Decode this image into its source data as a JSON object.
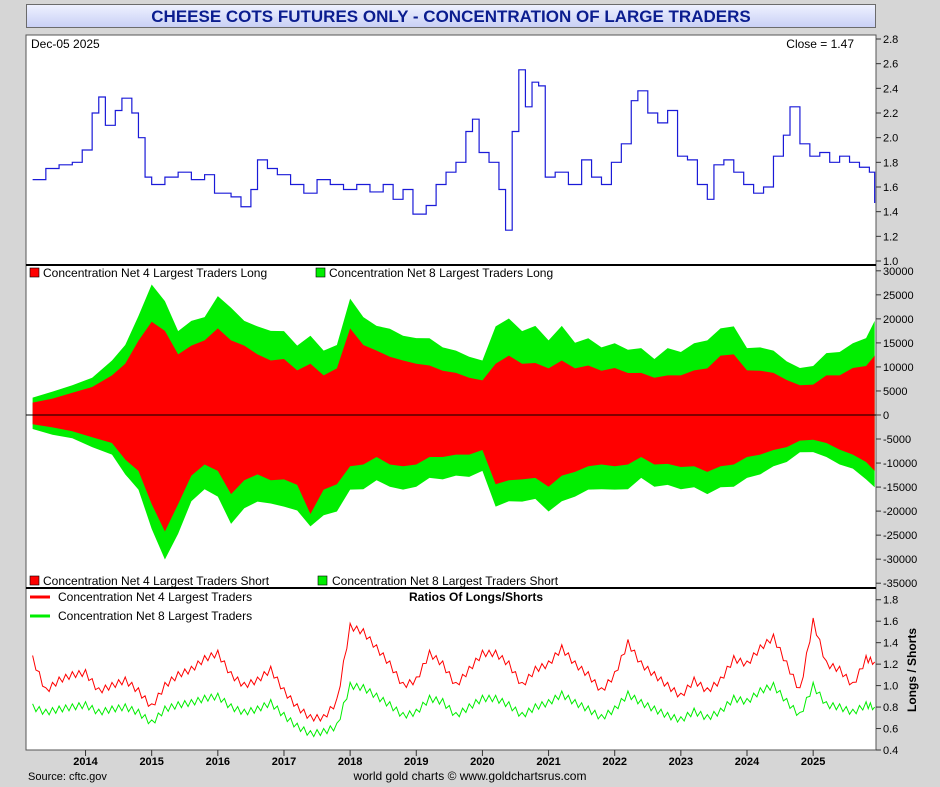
{
  "title": "CHEESE COTS FUTURES ONLY - CONCENTRATION OF LARGE TRADERS",
  "footer": {
    "source": "Source: cftc.gov",
    "credit": "world gold charts © www.goldchartsrus.com"
  },
  "colors": {
    "price_line": "#1a1ad8",
    "net4": "#ff0000",
    "net8": "#00ee00",
    "title_text": "#0b1d8f"
  },
  "x_axis": {
    "years": [
      "2014",
      "2015",
      "2016",
      "2017",
      "2018",
      "2019",
      "2020",
      "2021",
      "2022",
      "2023",
      "2024",
      "2025"
    ]
  },
  "chart_data": [
    {
      "type": "line",
      "name": "price",
      "date_label": "Dec-05  2025",
      "close_label": "Close = 1.47",
      "yticks": [
        "2.8",
        "2.6",
        "2.4",
        "2.2",
        "2.0",
        "1.8",
        "1.6",
        "1.4",
        "1.2",
        "1.0"
      ],
      "ylim": [
        1.0,
        2.8
      ],
      "points": [
        [
          2013.2,
          1.66
        ],
        [
          2013.4,
          1.75
        ],
        [
          2013.6,
          1.78
        ],
        [
          2013.8,
          1.8
        ],
        [
          2013.95,
          1.9
        ],
        [
          2014.1,
          2.2
        ],
        [
          2014.2,
          2.33
        ],
        [
          2014.3,
          2.1
        ],
        [
          2014.45,
          2.22
        ],
        [
          2014.55,
          2.32
        ],
        [
          2014.7,
          2.2
        ],
        [
          2014.8,
          2.0
        ],
        [
          2014.9,
          1.68
        ],
        [
          2015.0,
          1.62
        ],
        [
          2015.2,
          1.68
        ],
        [
          2015.4,
          1.72
        ],
        [
          2015.6,
          1.66
        ],
        [
          2015.8,
          1.7
        ],
        [
          2015.95,
          1.55
        ],
        [
          2016.2,
          1.52
        ],
        [
          2016.35,
          1.44
        ],
        [
          2016.5,
          1.58
        ],
        [
          2016.6,
          1.82
        ],
        [
          2016.75,
          1.75
        ],
        [
          2016.9,
          1.7
        ],
        [
          2017.1,
          1.62
        ],
        [
          2017.3,
          1.55
        ],
        [
          2017.5,
          1.66
        ],
        [
          2017.7,
          1.62
        ],
        [
          2017.9,
          1.58
        ],
        [
          2018.1,
          1.62
        ],
        [
          2018.3,
          1.56
        ],
        [
          2018.5,
          1.62
        ],
        [
          2018.65,
          1.5
        ],
        [
          2018.8,
          1.58
        ],
        [
          2018.95,
          1.38
        ],
        [
          2019.15,
          1.45
        ],
        [
          2019.3,
          1.62
        ],
        [
          2019.45,
          1.72
        ],
        [
          2019.6,
          1.8
        ],
        [
          2019.75,
          2.05
        ],
        [
          2019.85,
          2.15
        ],
        [
          2019.95,
          1.88
        ],
        [
          2020.1,
          1.8
        ],
        [
          2020.25,
          1.58
        ],
        [
          2020.35,
          1.25
        ],
        [
          2020.45,
          2.05
        ],
        [
          2020.55,
          2.55
        ],
        [
          2020.65,
          2.25
        ],
        [
          2020.75,
          2.45
        ],
        [
          2020.85,
          2.42
        ],
        [
          2020.95,
          1.68
        ],
        [
          2021.1,
          1.72
        ],
        [
          2021.3,
          1.62
        ],
        [
          2021.5,
          1.82
        ],
        [
          2021.65,
          1.68
        ],
        [
          2021.8,
          1.62
        ],
        [
          2021.95,
          1.8
        ],
        [
          2022.1,
          1.95
        ],
        [
          2022.25,
          2.3
        ],
        [
          2022.35,
          2.38
        ],
        [
          2022.5,
          2.2
        ],
        [
          2022.65,
          2.12
        ],
        [
          2022.8,
          2.22
        ],
        [
          2022.95,
          1.85
        ],
        [
          2023.1,
          1.82
        ],
        [
          2023.25,
          1.62
        ],
        [
          2023.4,
          1.5
        ],
        [
          2023.5,
          1.78
        ],
        [
          2023.65,
          1.82
        ],
        [
          2023.8,
          1.72
        ],
        [
          2023.95,
          1.62
        ],
        [
          2024.1,
          1.55
        ],
        [
          2024.25,
          1.6
        ],
        [
          2024.4,
          1.85
        ],
        [
          2024.55,
          2.02
        ],
        [
          2024.65,
          2.25
        ],
        [
          2024.8,
          1.95
        ],
        [
          2024.95,
          1.85
        ],
        [
          2025.1,
          1.88
        ],
        [
          2025.25,
          1.8
        ],
        [
          2025.4,
          1.85
        ],
        [
          2025.55,
          1.8
        ],
        [
          2025.7,
          1.76
        ],
        [
          2025.85,
          1.72
        ],
        [
          2025.93,
          1.47
        ]
      ]
    },
    {
      "type": "area",
      "name": "concentration",
      "legend_long": [
        "Concentration Net 4 Largest Traders Long",
        "Concentration Net 8 Largest Traders Long"
      ],
      "legend_short": [
        "Concentration Net 4 Largest Traders Short",
        "Concentration Net 8 Largest Traders Short"
      ],
      "yticks": [
        "30000",
        "25000",
        "20000",
        "15000",
        "10000",
        "5000",
        "0",
        "-5000",
        "-10000",
        "-15000",
        "-20000",
        "-25000",
        "-30000",
        "-35000"
      ],
      "ylim": [
        -36000,
        31000
      ],
      "x": [
        2013.2,
        2013.5,
        2013.8,
        2014.1,
        2014.4,
        2014.6,
        2014.8,
        2015.0,
        2015.2,
        2015.4,
        2015.6,
        2015.8,
        2016.0,
        2016.2,
        2016.4,
        2016.6,
        2016.8,
        2017.0,
        2017.2,
        2017.4,
        2017.6,
        2017.8,
        2018.0,
        2018.2,
        2018.4,
        2018.6,
        2018.8,
        2019.0,
        2019.2,
        2019.4,
        2019.6,
        2019.8,
        2020.0,
        2020.2,
        2020.4,
        2020.6,
        2020.8,
        2021.0,
        2021.2,
        2021.4,
        2021.6,
        2021.8,
        2022.0,
        2022.2,
        2022.4,
        2022.6,
        2022.8,
        2023.0,
        2023.2,
        2023.4,
        2023.6,
        2023.8,
        2024.0,
        2024.2,
        2024.4,
        2024.6,
        2024.8,
        2025.0,
        2025.2,
        2025.4,
        2025.6,
        2025.8,
        2025.93
      ],
      "net4_long": [
        2500,
        3500,
        4500,
        6000,
        8000,
        11000,
        15000,
        20000,
        17000,
        13000,
        14000,
        16000,
        17500,
        16000,
        14000,
        13000,
        11000,
        12000,
        9000,
        11000,
        8000,
        10000,
        17500,
        15000,
        13000,
        12500,
        11000,
        11000,
        10000,
        9500,
        8500,
        8000,
        7000,
        11000,
        12000,
        11000,
        10500,
        10000,
        11000,
        10000,
        10000,
        9500,
        9500,
        9000,
        8500,
        8000,
        8000,
        8500,
        9000,
        10000,
        12000,
        13000,
        9000,
        9500,
        8500,
        7500,
        6000,
        6500,
        8000,
        8500,
        9500,
        10500,
        12000
      ],
      "net8_long": [
        3500,
        5000,
        6000,
        8000,
        11000,
        15000,
        20000,
        28000,
        23000,
        18000,
        19000,
        21000,
        24000,
        23000,
        19000,
        19000,
        17000,
        18000,
        14000,
        17000,
        13000,
        15000,
        23500,
        21000,
        18000,
        18500,
        16000,
        16500,
        15500,
        14500,
        13000,
        12500,
        11000,
        19000,
        19500,
        18000,
        18000,
        16000,
        18000,
        15500,
        15500,
        14500,
        14500,
        14000,
        13500,
        12000,
        13500,
        13500,
        14500,
        16000,
        17500,
        19000,
        13500,
        14500,
        13000,
        11500,
        9500,
        10500,
        12500,
        13500,
        14500,
        16500,
        19000
      ],
      "net4_short": [
        -2000,
        -2500,
        -3500,
        -4500,
        -6000,
        -9000,
        -12000,
        -18000,
        -25000,
        -18000,
        -13000,
        -10000,
        -12000,
        -16000,
        -14000,
        -12000,
        -14000,
        -13000,
        -15000,
        -20000,
        -16000,
        -14000,
        -11000,
        -10000,
        -9000,
        -10000,
        -11000,
        -10000,
        -9000,
        -8500,
        -8500,
        -8000,
        -7500,
        -14000,
        -14000,
        -13000,
        -13500,
        -14500,
        -13000,
        -11500,
        -11000,
        -10000,
        -11000,
        -10000,
        -9000,
        -10000,
        -10500,
        -10500,
        -11000,
        -11500,
        -11000,
        -10000,
        -9000,
        -8000,
        -7500,
        -6500,
        -5500,
        -5000,
        -6000,
        -7000,
        -8500,
        -9500,
        -12000
      ],
      "net8_short": [
        -3000,
        -4000,
        -5000,
        -6500,
        -8500,
        -12000,
        -16000,
        -23000,
        -31000,
        -24000,
        -18500,
        -15000,
        -17500,
        -22000,
        -20000,
        -17500,
        -19000,
        -18500,
        -20500,
        -22500,
        -21500,
        -19500,
        -16000,
        -15000,
        -14000,
        -14500,
        -16000,
        -14500,
        -13500,
        -13000,
        -13000,
        -12500,
        -12000,
        -18500,
        -18500,
        -17500,
        -18000,
        -19500,
        -18500,
        -16500,
        -16000,
        -15000,
        -16000,
        -15000,
        -13500,
        -14500,
        -15000,
        -15000,
        -15500,
        -16000,
        -15500,
        -14500,
        -13500,
        -12000,
        -11000,
        -9500,
        -8000,
        -7500,
        -9000,
        -10000,
        -11500,
        -13000,
        -15500
      ]
    },
    {
      "type": "line",
      "name": "ratios",
      "title": "Ratios Of Longs/Shorts",
      "ylabel": "Longs / Shorts",
      "series_names": [
        "Concentration Net 4 Largest Traders",
        "Concentration Net 8 Largest Traders"
      ],
      "yticks": [
        "1.8",
        "1.6",
        "1.4",
        "1.2",
        "1.0",
        "0.8",
        "0.6",
        "0.4"
      ],
      "ylim": [
        0.4,
        1.9
      ],
      "x": [
        2013.2,
        2013.4,
        2013.6,
        2013.8,
        2014.0,
        2014.2,
        2014.4,
        2014.6,
        2014.8,
        2015.0,
        2015.2,
        2015.4,
        2015.6,
        2015.8,
        2016.0,
        2016.2,
        2016.4,
        2016.6,
        2016.8,
        2017.0,
        2017.2,
        2017.4,
        2017.6,
        2017.8,
        2018.0,
        2018.2,
        2018.4,
        2018.6,
        2018.8,
        2019.0,
        2019.2,
        2019.4,
        2019.6,
        2019.8,
        2020.0,
        2020.2,
        2020.4,
        2020.6,
        2020.8,
        2021.0,
        2021.2,
        2021.4,
        2021.6,
        2021.8,
        2022.0,
        2022.2,
        2022.4,
        2022.6,
        2022.8,
        2023.0,
        2023.2,
        2023.4,
        2023.6,
        2023.8,
        2024.0,
        2024.2,
        2024.4,
        2024.6,
        2024.8,
        2025.0,
        2025.2,
        2025.4,
        2025.6,
        2025.8,
        2025.93
      ],
      "net4": [
        1.25,
        0.95,
        1.05,
        1.1,
        1.12,
        0.95,
        1.0,
        1.05,
        0.95,
        0.8,
        1.0,
        1.1,
        1.15,
        1.25,
        1.3,
        1.1,
        1.0,
        1.05,
        1.15,
        0.95,
        0.8,
        0.7,
        0.7,
        0.85,
        1.55,
        1.5,
        1.35,
        1.2,
        1.0,
        1.05,
        1.3,
        1.2,
        1.0,
        1.15,
        1.3,
        1.3,
        1.2,
        1.0,
        1.15,
        1.2,
        1.35,
        1.2,
        1.1,
        0.95,
        1.1,
        1.4,
        1.2,
        1.1,
        1.0,
        0.9,
        1.05,
        0.95,
        1.05,
        1.25,
        1.2,
        1.35,
        1.45,
        1.2,
        0.95,
        1.6,
        1.2,
        1.15,
        1.0,
        1.25,
        1.22
      ],
      "net8": [
        0.8,
        0.75,
        0.78,
        0.8,
        0.82,
        0.75,
        0.78,
        0.8,
        0.75,
        0.65,
        0.78,
        0.82,
        0.84,
        0.88,
        0.9,
        0.8,
        0.75,
        0.78,
        0.84,
        0.72,
        0.62,
        0.55,
        0.57,
        0.62,
        1.0,
        0.98,
        0.9,
        0.82,
        0.72,
        0.75,
        0.88,
        0.85,
        0.72,
        0.8,
        0.88,
        0.88,
        0.82,
        0.72,
        0.8,
        0.84,
        0.92,
        0.84,
        0.78,
        0.7,
        0.78,
        0.92,
        0.84,
        0.78,
        0.72,
        0.68,
        0.76,
        0.7,
        0.76,
        0.88,
        0.85,
        0.95,
        1.0,
        0.85,
        0.72,
        1.0,
        0.82,
        0.8,
        0.75,
        0.82,
        0.8
      ]
    }
  ]
}
